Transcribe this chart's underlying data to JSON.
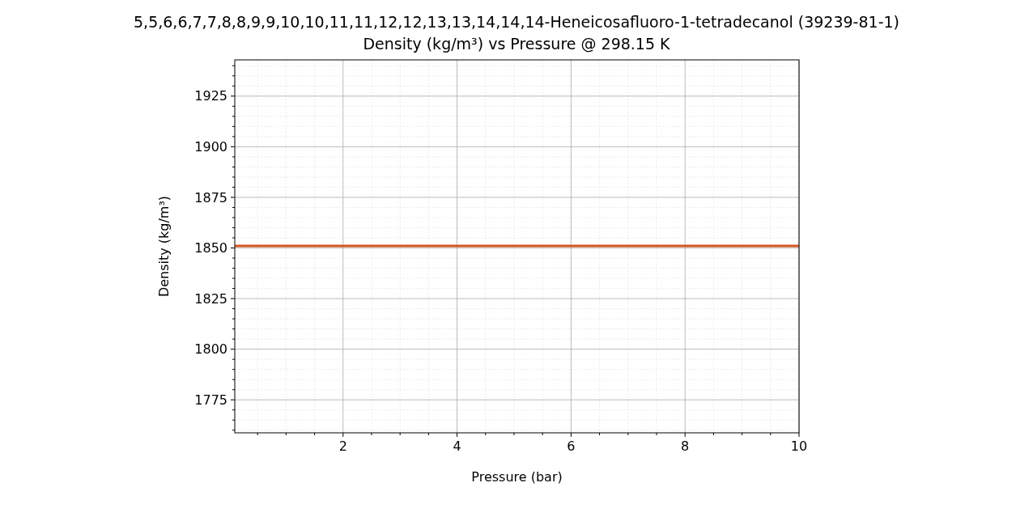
{
  "chart_data": {
    "type": "line",
    "title": "5,5,6,6,7,7,8,8,9,9,10,10,11,11,12,12,13,13,14,14,14-Heneicosafluoro-1-tetradecanol (39239-81-1)",
    "subtitle": "Density (kg/m³) vs Pressure @ 298.15 K",
    "xlabel": "Pressure (bar)",
    "ylabel": "Density (kg/m³)",
    "x": [
      0.1,
      10
    ],
    "series": [
      {
        "color": "#d4541f",
        "values": [
          1851,
          1851
        ]
      }
    ],
    "xlim": [
      0.1,
      10
    ],
    "xticks": [
      {
        "value": 0.5,
        "label": null
      },
      {
        "value": 1,
        "label": null
      },
      {
        "value": 1.5,
        "label": null
      },
      2,
      {
        "value": 2.5,
        "label": null
      },
      {
        "value": 3,
        "label": null
      },
      {
        "value": 3.5,
        "label": null
      },
      4,
      {
        "value": 4.5,
        "label": null
      },
      {
        "value": 5,
        "label": null
      },
      {
        "value": 5.5,
        "label": null
      },
      6,
      {
        "value": 6.5,
        "label": null
      },
      {
        "value": 7,
        "label": null
      },
      {
        "value": 7.5,
        "label": null
      },
      8,
      {
        "value": 8.5,
        "label": null
      },
      {
        "value": 9,
        "label": null
      },
      {
        "value": 9.5,
        "label": null
      },
      10
    ],
    "ylim": [
      1758.7,
      1942.9
    ],
    "yticks": [
      {
        "value": 1760,
        "label": null
      },
      {
        "value": 1765,
        "label": null
      },
      {
        "value": 1770,
        "label": null
      },
      1775,
      {
        "value": 1780,
        "label": null
      },
      {
        "value": 1785,
        "label": null
      },
      {
        "value": 1790,
        "label": null
      },
      {
        "value": 1795,
        "label": null
      },
      1800,
      {
        "value": 1805,
        "label": null
      },
      {
        "value": 1810,
        "label": null
      },
      {
        "value": 1815,
        "label": null
      },
      {
        "value": 1820,
        "label": null
      },
      1825,
      {
        "value": 1830,
        "label": null
      },
      {
        "value": 1835,
        "label": null
      },
      {
        "value": 1840,
        "label": null
      },
      {
        "value": 1845,
        "label": null
      },
      1850,
      {
        "value": 1855,
        "label": null
      },
      {
        "value": 1860,
        "label": null
      },
      {
        "value": 1865,
        "label": null
      },
      {
        "value": 1870,
        "label": null
      },
      1875,
      {
        "value": 1880,
        "label": null
      },
      {
        "value": 1885,
        "label": null
      },
      {
        "value": 1890,
        "label": null
      },
      {
        "value": 1895,
        "label": null
      },
      1900,
      {
        "value": 1905,
        "label": null
      },
      {
        "value": 1910,
        "label": null
      },
      {
        "value": 1915,
        "label": null
      },
      {
        "value": 1920,
        "label": null
      },
      1925,
      {
        "value": 1930,
        "label": null
      },
      {
        "value": 1935,
        "label": null
      },
      {
        "value": 1940,
        "label": null
      }
    ],
    "grid": true,
    "marker": "none",
    "line_style": "solid"
  }
}
